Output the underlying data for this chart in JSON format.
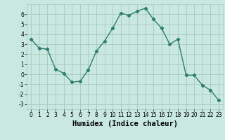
{
  "x": [
    0,
    1,
    2,
    3,
    4,
    5,
    6,
    7,
    8,
    9,
    10,
    11,
    12,
    13,
    14,
    15,
    16,
    17,
    18,
    19,
    20,
    21,
    22,
    23
  ],
  "y": [
    3.5,
    2.6,
    2.5,
    0.5,
    0.1,
    -0.8,
    -0.7,
    0.4,
    2.3,
    3.3,
    4.6,
    6.1,
    5.9,
    6.3,
    6.6,
    5.5,
    4.6,
    3.0,
    3.5,
    -0.1,
    -0.1,
    -1.1,
    -1.6,
    -2.6
  ],
  "line_color": "#2e7d6e",
  "marker": "D",
  "marker_size": 2.2,
  "bg_color": "#c8e8e0",
  "grid_color": "#a8c8c0",
  "xlabel": "Humidex (Indice chaleur)",
  "xlim": [
    -0.5,
    23.5
  ],
  "ylim": [
    -3.5,
    7.0
  ],
  "yticks": [
    -3,
    -2,
    -1,
    0,
    1,
    2,
    3,
    4,
    5,
    6
  ],
  "xticks": [
    0,
    1,
    2,
    3,
    4,
    5,
    6,
    7,
    8,
    9,
    10,
    11,
    12,
    13,
    14,
    15,
    16,
    17,
    18,
    19,
    20,
    21,
    22,
    23
  ],
  "tick_fontsize": 5.5,
  "xlabel_fontsize": 7.5,
  "line_width": 1.0
}
